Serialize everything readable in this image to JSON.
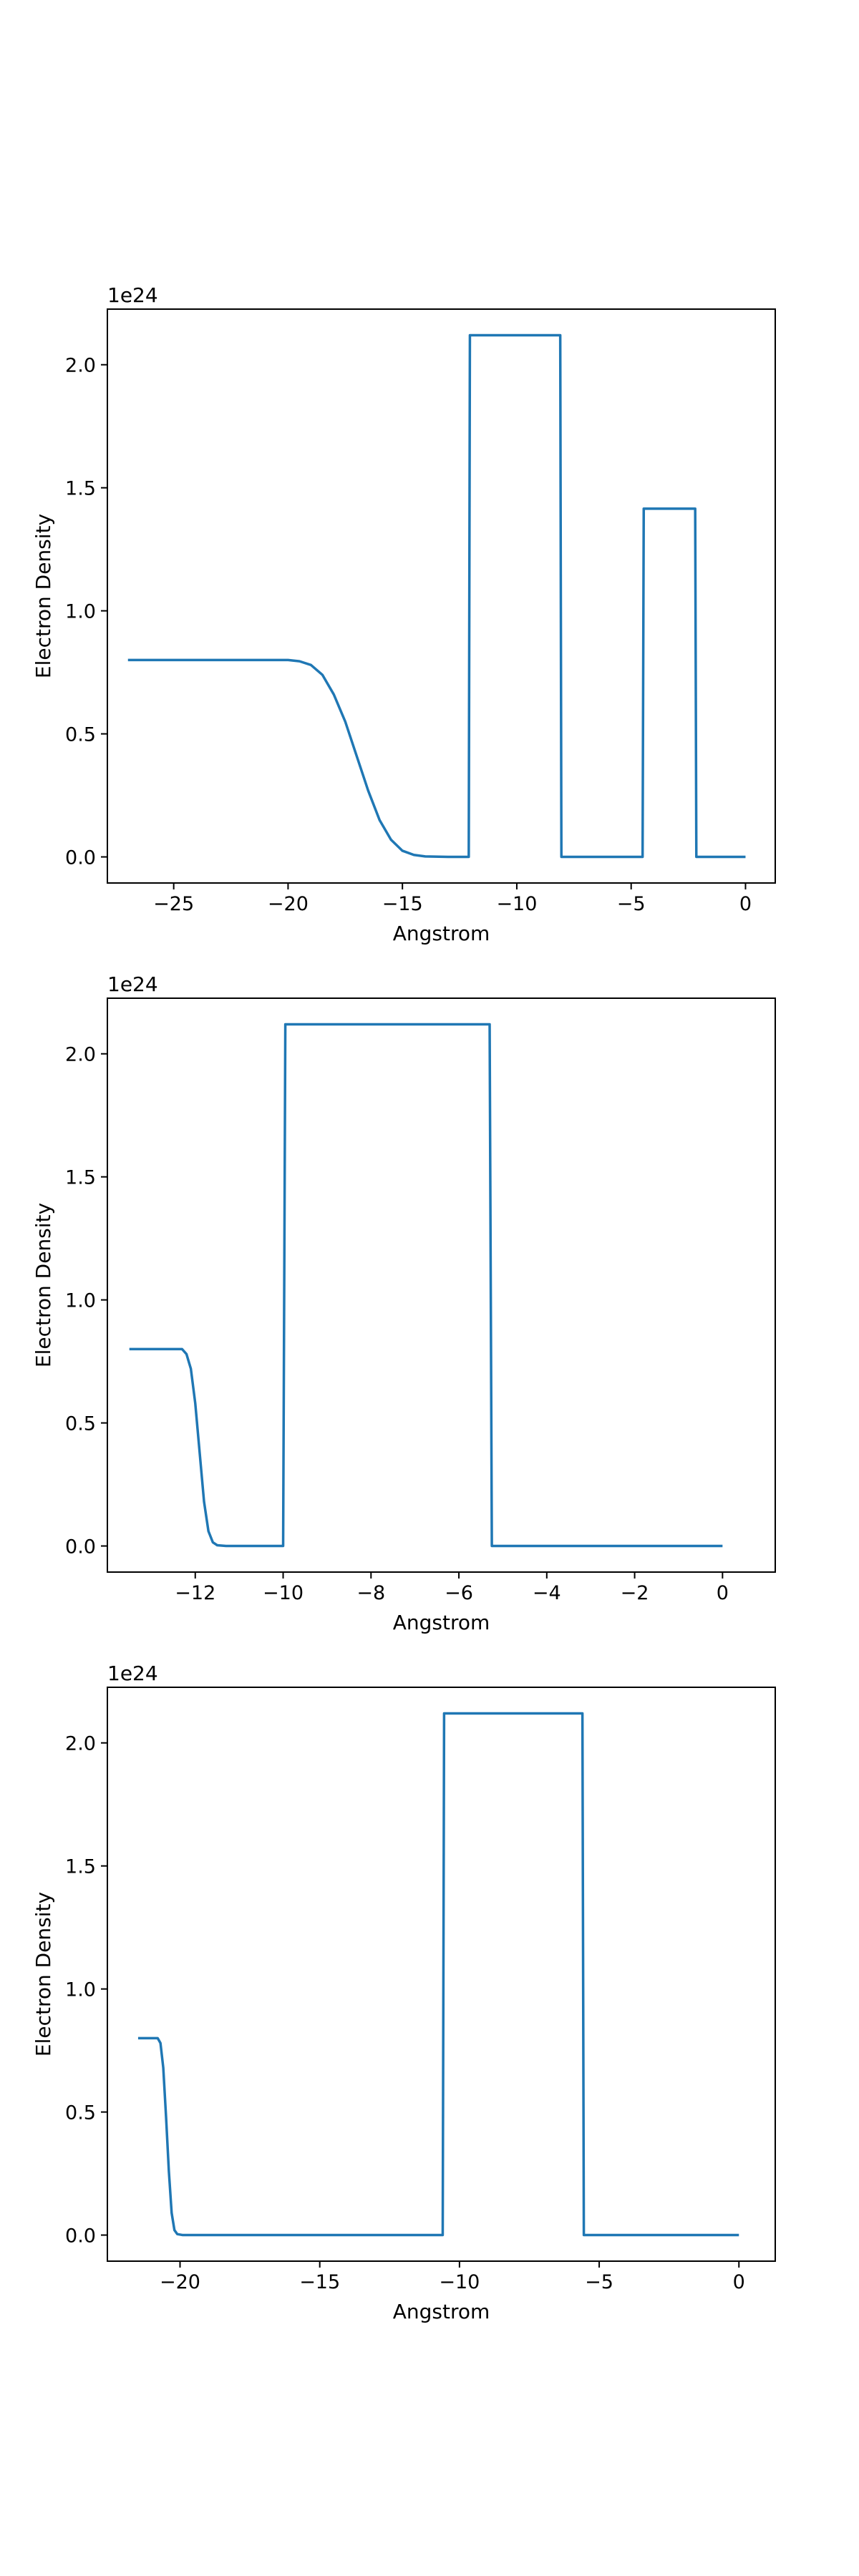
{
  "figure": {
    "background": "#ffffff",
    "line_color": "#1f77b4"
  },
  "chart_data": [
    {
      "type": "line",
      "xlabel": "Angstrom",
      "ylabel": "Electron Density",
      "offset_text": "1e24",
      "xlim": [
        -27.9,
        1.3
      ],
      "ylim": [
        -0.106,
        2.226
      ],
      "xticks": [
        -25,
        -20,
        -15,
        -10,
        -5,
        0
      ],
      "xtick_labels": [
        "−25",
        "−20",
        "−15",
        "−10",
        "−5",
        "0"
      ],
      "yticks": [
        0.0,
        0.5,
        1.0,
        1.5,
        2.0
      ],
      "ytick_labels": [
        "0.0",
        "0.5",
        "1.0",
        "1.5",
        "2.0"
      ],
      "grid": false,
      "series": [
        {
          "x": [
            -27.0,
            -20.0,
            -19.5,
            -19.0,
            -18.5,
            -18.0,
            -17.5,
            -17.0,
            -16.5,
            -16.0,
            -15.5,
            -15.0,
            -14.5,
            -14.0,
            -13.0,
            -12.1,
            -12.05,
            -8.1,
            -8.05,
            -4.5,
            -4.45,
            -2.2,
            -2.15,
            0.0
          ],
          "y": [
            0.8,
            0.8,
            0.795,
            0.78,
            0.74,
            0.66,
            0.55,
            0.41,
            0.27,
            0.15,
            0.07,
            0.025,
            0.008,
            0.002,
            0.0,
            0.0,
            2.12,
            2.12,
            0.0,
            0.0,
            1.415,
            1.415,
            0.0,
            0.0
          ]
        }
      ]
    },
    {
      "type": "line",
      "xlabel": "Angstrom",
      "ylabel": "Electron Density",
      "offset_text": "1e24",
      "xlim": [
        -14.0,
        1.2
      ],
      "ylim": [
        -0.106,
        2.226
      ],
      "xticks": [
        -12,
        -10,
        -8,
        -6,
        -4,
        -2,
        0
      ],
      "xtick_labels": [
        "−12",
        "−10",
        "−8",
        "−6",
        "−4",
        "−2",
        "0"
      ],
      "yticks": [
        0.0,
        0.5,
        1.0,
        1.5,
        2.0
      ],
      "ytick_labels": [
        "0.0",
        "0.5",
        "1.0",
        "1.5",
        "2.0"
      ],
      "grid": false,
      "series": [
        {
          "x": [
            -13.5,
            -12.3,
            -12.2,
            -12.1,
            -12.0,
            -11.9,
            -11.8,
            -11.7,
            -11.6,
            -11.5,
            -11.3,
            -10.0,
            -9.95,
            -5.3,
            -5.25,
            0.0
          ],
          "y": [
            0.8,
            0.8,
            0.78,
            0.72,
            0.58,
            0.38,
            0.18,
            0.06,
            0.015,
            0.003,
            0.0,
            0.0,
            2.12,
            2.12,
            0.0,
            0.0
          ]
        }
      ]
    },
    {
      "type": "line",
      "xlabel": "Angstrom",
      "ylabel": "Electron Density",
      "offset_text": "1e24",
      "xlim": [
        -22.6,
        1.3
      ],
      "ylim": [
        -0.106,
        2.226
      ],
      "xticks": [
        -20,
        -15,
        -10,
        -5,
        0
      ],
      "xtick_labels": [
        "−20",
        "−15",
        "−10",
        "−5",
        "0"
      ],
      "yticks": [
        0.0,
        0.5,
        1.0,
        1.5,
        2.0
      ],
      "ytick_labels": [
        "0.0",
        "0.5",
        "1.0",
        "1.5",
        "2.0"
      ],
      "grid": false,
      "series": [
        {
          "x": [
            -21.5,
            -20.8,
            -20.7,
            -20.6,
            -20.5,
            -20.4,
            -20.3,
            -20.2,
            -20.1,
            -19.9,
            -10.6,
            -10.55,
            -5.6,
            -5.55,
            0.0
          ],
          "y": [
            0.8,
            0.8,
            0.78,
            0.68,
            0.48,
            0.26,
            0.09,
            0.02,
            0.004,
            0.0,
            0.0,
            2.12,
            2.12,
            0.0,
            0.0
          ]
        }
      ]
    }
  ]
}
